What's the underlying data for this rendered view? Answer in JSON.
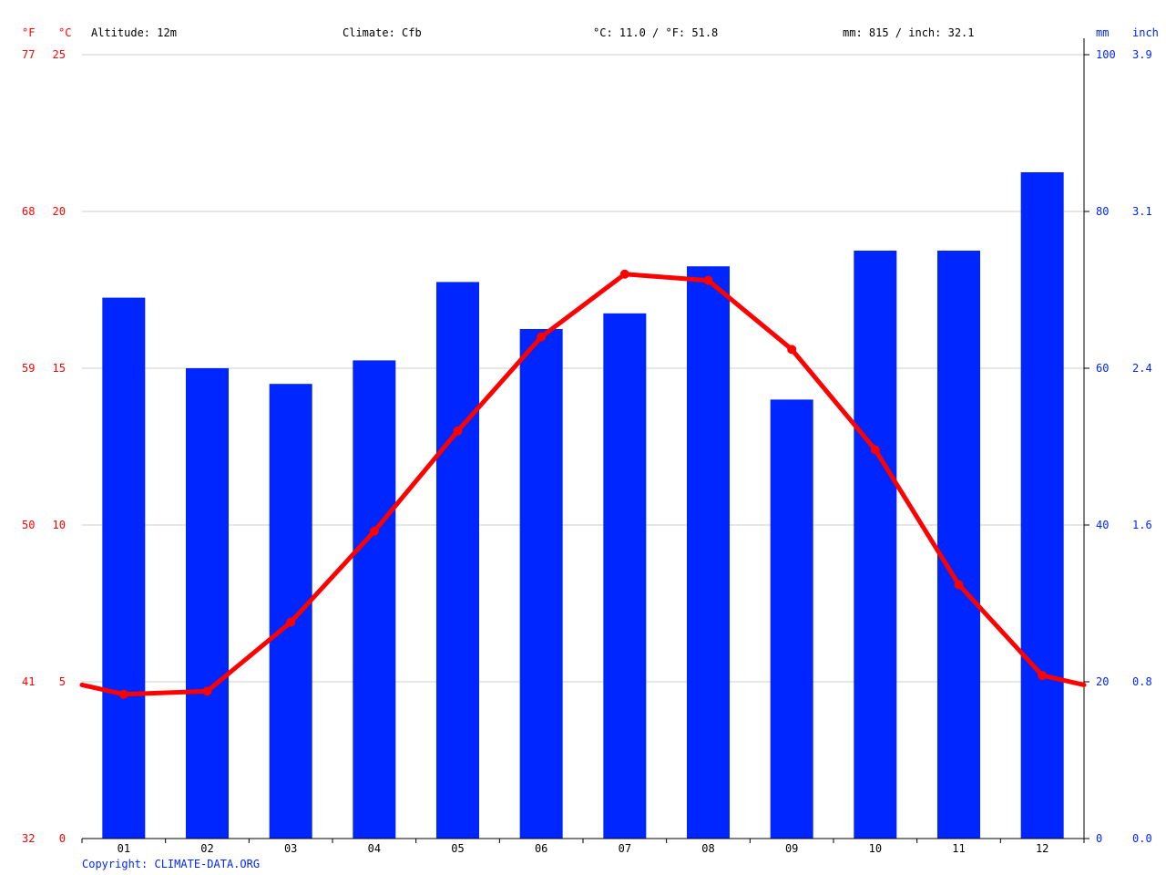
{
  "header": {
    "unit_f": "°F",
    "unit_c": "°C",
    "altitude": "Altitude: 12m",
    "climate": "Climate: Cfb",
    "temp_avg": "°C: 11.0 / °F: 51.8",
    "precip_total": "mm: 815 / inch: 32.1",
    "unit_mm": "mm",
    "unit_inch": "inch"
  },
  "copyright": "Copyright: CLIMATE-DATA.ORG",
  "colors": {
    "temperature": "#ff0000",
    "precipitation": "#0026ff",
    "grid": "#cccccc",
    "axis": "#000000"
  },
  "chart_data": {
    "type": "bar",
    "categories": [
      "01",
      "02",
      "03",
      "04",
      "05",
      "06",
      "07",
      "08",
      "09",
      "10",
      "11",
      "12"
    ],
    "series": [
      {
        "type": "bar",
        "axis": "right",
        "unit": "mm",
        "values": [
          69,
          60,
          58,
          61,
          71,
          65,
          67,
          73,
          56,
          75,
          75,
          85
        ]
      },
      {
        "type": "line",
        "axis": "left",
        "unit": "°C",
        "values": [
          4.6,
          4.7,
          6.9,
          9.8,
          13.0,
          16.0,
          18.0,
          17.8,
          15.6,
          12.4,
          8.1,
          5.2
        ],
        "edge_start": 4.9,
        "edge_end": 4.9
      }
    ],
    "y_left_c": {
      "ticks": [
        "0",
        "5",
        "10",
        "15",
        "20",
        "25"
      ],
      "ylim": [
        0,
        25
      ]
    },
    "y_left_f": {
      "ticks": [
        "32",
        "41",
        "50",
        "59",
        "68",
        "77"
      ]
    },
    "y_right_mm": {
      "ticks": [
        "0",
        "20",
        "40",
        "60",
        "80",
        "100"
      ],
      "ylim": [
        0,
        100
      ]
    },
    "y_right_inch": {
      "ticks": [
        "0.0",
        "0.8",
        "1.6",
        "2.4",
        "3.1",
        "3.9"
      ]
    },
    "grid": true
  }
}
